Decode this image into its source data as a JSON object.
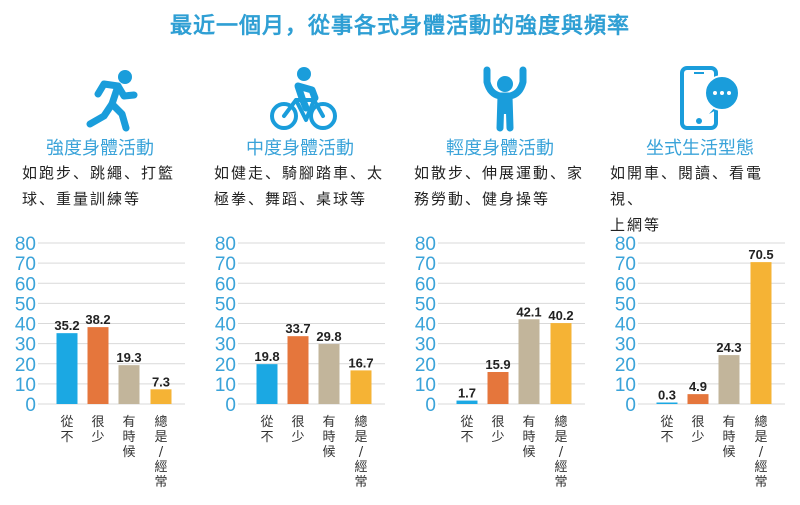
{
  "title": "最近一個月，從事各式身體活動的強度與頻率",
  "colors": {
    "title": "#2f9fd4",
    "icon": "#1a9ddb",
    "bars": [
      "#1ba8e3",
      "#e5763c",
      "#c2b59b",
      "#f5b335"
    ]
  },
  "panels": [
    {
      "icon": "running-person-icon",
      "title": "強度身體活動",
      "description_lines": [
        "如跑步、跳繩、打籃",
        "球、重量訓練等"
      ]
    },
    {
      "icon": "cyclist-icon",
      "title": "中度身體活動",
      "description_lines": [
        "如健走、騎腳踏車、太",
        "極拳、舞蹈、桌球等"
      ]
    },
    {
      "icon": "person-arms-raised-icon",
      "title": "輕度身體活動",
      "description_lines": [
        "如散步、伸展運動、家",
        "務勞動、健身操等"
      ]
    },
    {
      "icon": "smartphone-chat-icon",
      "title": "坐式生活型態",
      "description_lines": [
        "如開車、閱讀、看電視、",
        "上網等"
      ]
    }
  ],
  "chart_data": [
    {
      "type": "bar",
      "title": "強度身體活動",
      "categories": [
        "從不",
        "很少",
        "有時候",
        "總是/經常"
      ],
      "values": [
        35.2,
        38.2,
        19.3,
        7.3
      ],
      "ylim": [
        0,
        80
      ],
      "yticks": [
        0,
        10,
        20,
        30,
        40,
        50,
        60,
        70,
        80
      ],
      "grid": true,
      "xlabel": "",
      "ylabel": ""
    },
    {
      "type": "bar",
      "title": "中度身體活動",
      "categories": [
        "從不",
        "很少",
        "有時候",
        "總是/經常"
      ],
      "values": [
        19.8,
        33.7,
        29.8,
        16.7
      ],
      "ylim": [
        0,
        80
      ],
      "yticks": [
        0,
        10,
        20,
        30,
        40,
        50,
        60,
        70,
        80
      ],
      "grid": true,
      "xlabel": "",
      "ylabel": ""
    },
    {
      "type": "bar",
      "title": "輕度身體活動",
      "categories": [
        "從不",
        "很少",
        "有時候",
        "總是/經常"
      ],
      "values": [
        1.7,
        15.9,
        42.1,
        40.2
      ],
      "ylim": [
        0,
        80
      ],
      "yticks": [
        0,
        10,
        20,
        30,
        40,
        50,
        60,
        70,
        80
      ],
      "grid": true,
      "xlabel": "",
      "ylabel": ""
    },
    {
      "type": "bar",
      "title": "坐式生活型態",
      "categories": [
        "從不",
        "很少",
        "有時候",
        "總是/經常"
      ],
      "values": [
        0.3,
        4.9,
        24.3,
        70.5
      ],
      "ylim": [
        0,
        80
      ],
      "yticks": [
        0,
        10,
        20,
        30,
        40,
        50,
        60,
        70,
        80
      ],
      "grid": true,
      "xlabel": "",
      "ylabel": ""
    }
  ]
}
